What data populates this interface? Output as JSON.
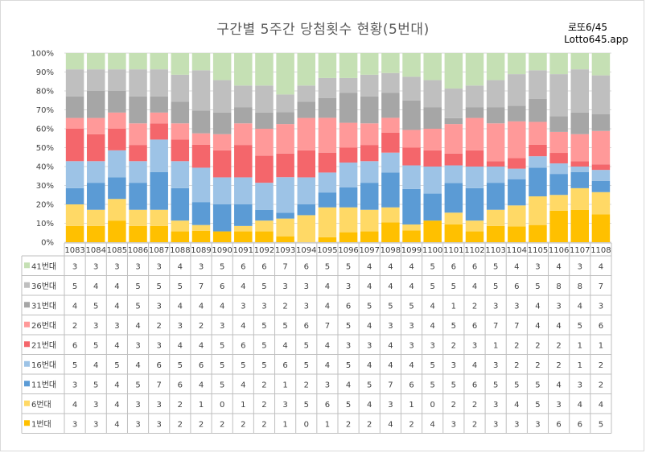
{
  "title": "구간별 5주간 당첨횟수 현황(5번대)",
  "brand_line1": "로또6/45",
  "brand_line2": "Lotto645.app",
  "chart_data": {
    "type": "bar",
    "stacked": "percent",
    "categories": [
      "1083",
      "1084",
      "1085",
      "1086",
      "1087",
      "1088",
      "1089",
      "1090",
      "1091",
      "1092",
      "1093",
      "1094",
      "1095",
      "1096",
      "1097",
      "1098",
      "1099",
      "1100",
      "1101",
      "1102",
      "1103",
      "1104",
      "1105",
      "1106",
      "1107",
      "1108"
    ],
    "y_ticks": [
      "0%",
      "10%",
      "20%",
      "30%",
      "40%",
      "50%",
      "60%",
      "70%",
      "80%",
      "90%",
      "100%"
    ],
    "ylim": [
      0,
      100
    ],
    "grid": true,
    "legend": "table-left",
    "series": [
      {
        "name": "41번대",
        "color": "#c5e0b4",
        "values": [
          3,
          3,
          3,
          3,
          3,
          4,
          3,
          5,
          6,
          6,
          7,
          6,
          5,
          5,
          4,
          4,
          4,
          5,
          6,
          6,
          5,
          4,
          3,
          4,
          3,
          4
        ]
      },
      {
        "name": "36번대",
        "color": "#bfbfbf",
        "values": [
          5,
          4,
          4,
          5,
          5,
          5,
          7,
          6,
          4,
          5,
          3,
          3,
          4,
          3,
          4,
          4,
          4,
          5,
          5,
          4,
          5,
          6,
          5,
          8,
          8,
          7
        ]
      },
      {
        "name": "31번대",
        "color": "#a6a6a6",
        "values": [
          4,
          5,
          4,
          5,
          3,
          4,
          4,
          4,
          3,
          3,
          2,
          3,
          4,
          6,
          5,
          5,
          5,
          4,
          1,
          2,
          3,
          3,
          4,
          3,
          4,
          3
        ]
      },
      {
        "name": "26번대",
        "color": "#ff9999",
        "values": [
          2,
          3,
          3,
          4,
          2,
          3,
          2,
          3,
          4,
          5,
          5,
          6,
          7,
          5,
          4,
          3,
          3,
          4,
          5,
          6,
          7,
          7,
          4,
          4,
          5,
          6
        ]
      },
      {
        "name": "21번대",
        "color": "#f4666b",
        "values": [
          6,
          5,
          4,
          3,
          3,
          4,
          4,
          5,
          6,
          5,
          4,
          5,
          4,
          3,
          3,
          4,
          3,
          3,
          2,
          3,
          1,
          2,
          2,
          2,
          1,
          1
        ]
      },
      {
        "name": "16번대",
        "color": "#9dc3e6",
        "values": [
          5,
          4,
          5,
          4,
          6,
          5,
          6,
          5,
          5,
          5,
          6,
          5,
          4,
          5,
          4,
          4,
          4,
          5,
          3,
          4,
          3,
          2,
          2,
          2,
          1,
          2
        ]
      },
      {
        "name": "11번대",
        "color": "#5b9bd5",
        "values": [
          3,
          5,
          4,
          5,
          7,
          6,
          4,
          5,
          4,
          2,
          1,
          2,
          3,
          4,
          5,
          7,
          6,
          5,
          5,
          6,
          5,
          5,
          5,
          4,
          3,
          2
        ]
      },
      {
        "name": "6번대",
        "color": "#ffd966",
        "values": [
          4,
          3,
          4,
          3,
          3,
          2,
          1,
          0,
          1,
          2,
          3,
          5,
          6,
          5,
          4,
          3,
          1,
          0,
          2,
          2,
          3,
          4,
          5,
          3,
          4,
          4
        ]
      },
      {
        "name": "1번대",
        "color": "#ffc000",
        "values": [
          3,
          3,
          4,
          3,
          3,
          2,
          2,
          2,
          2,
          2,
          1,
          0,
          1,
          2,
          2,
          4,
          2,
          4,
          3,
          2,
          3,
          3,
          3,
          6,
          6,
          5
        ]
      }
    ]
  }
}
